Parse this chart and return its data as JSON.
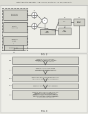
{
  "background_color": "#f5f5f0",
  "page_bg": "#e8e8e2",
  "header_text": "Patent Application Publication   Aug. 23, 2011 / Sheet 2 of 3   US 2011/0201289 A1",
  "fig2_label": "FIG. 2",
  "fig3_label": "FIG. 3",
  "line_color": "#444444",
  "box_edge": "#555555",
  "box_fill": "#d8d8d0",
  "inner_fill": "#c8c8c0",
  "text_color": "#222222",
  "flowchart_steps": [
    "GENERATE A SIGNAL HAVING FIRST\nFREQUENCY IN A FIRST OSCILLATOR THAT\nIS AN OPEN-LOOP CONFIGURATION",
    "GENERATE A SIGNAL HAVING SECOND\nFREQUENCY IN A SECOND OSCILLATOR\nTHAT IS AN CLOSED-LOOP CONFIGURATION",
    "PROVIDE THE SIGNAL HAVING THE FIRST FREQUENCY\nAND THE SIGNAL HAVING THE SECOND FREQUENCY",
    "GENERATE A FINAL SECOND SIGNAL FREQUENCY",
    "GENERATE A BEAT CLOSE-LOOP ONE OF THE FIRST\nFREQUENCY AND THE SECOND FREQUENCY\nCOMBINED TOGETHER TO FORM THE COMBINED\nFREQUENCY DEFINED BY THE SIGNAL HAVING THE\nFIRST FREQUENCY AND THE SECOND FREQUENCY\nVIA CLOSE LOOP CONFIGURATION"
  ],
  "step_labels": [
    "1001",
    "1002",
    "1003",
    "1004",
    "1005"
  ]
}
